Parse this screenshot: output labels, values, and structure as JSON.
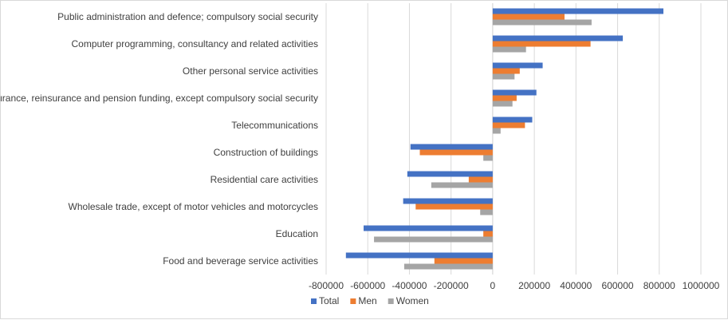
{
  "chart_data": {
    "type": "bar",
    "orientation": "horizontal",
    "title": "",
    "xlabel": "",
    "ylabel": "",
    "xlim": [
      -800000,
      1000000
    ],
    "xticks": [
      -800000,
      -600000,
      -400000,
      -200000,
      0,
      200000,
      400000,
      600000,
      800000,
      1000000
    ],
    "grid": true,
    "legend_position": "bottom",
    "categories": [
      "Public administration and defence; compulsory social security",
      "Computer programming, consultancy and related activities",
      "Other personal service activities",
      "Insurance, reinsurance and pension funding, except compulsory social security",
      "Telecommunications",
      "Construction of buildings",
      "Residential care activities",
      "Wholesale trade, except of motor vehicles and motorcycles",
      "Education",
      "Food and beverage service activities"
    ],
    "series": [
      {
        "name": "Total",
        "color": "#4472c4",
        "values": [
          820000,
          625000,
          240000,
          210000,
          190000,
          -395000,
          -410000,
          -430000,
          -620000,
          -705000
        ]
      },
      {
        "name": "Men",
        "color": "#ed7d31",
        "values": [
          345000,
          470000,
          130000,
          115000,
          155000,
          -350000,
          -115000,
          -370000,
          -45000,
          -280000
        ]
      },
      {
        "name": "Women",
        "color": "#a5a5a5",
        "values": [
          475000,
          160000,
          105000,
          95000,
          38000,
          -45000,
          -295000,
          -60000,
          -570000,
          -425000
        ]
      }
    ]
  }
}
